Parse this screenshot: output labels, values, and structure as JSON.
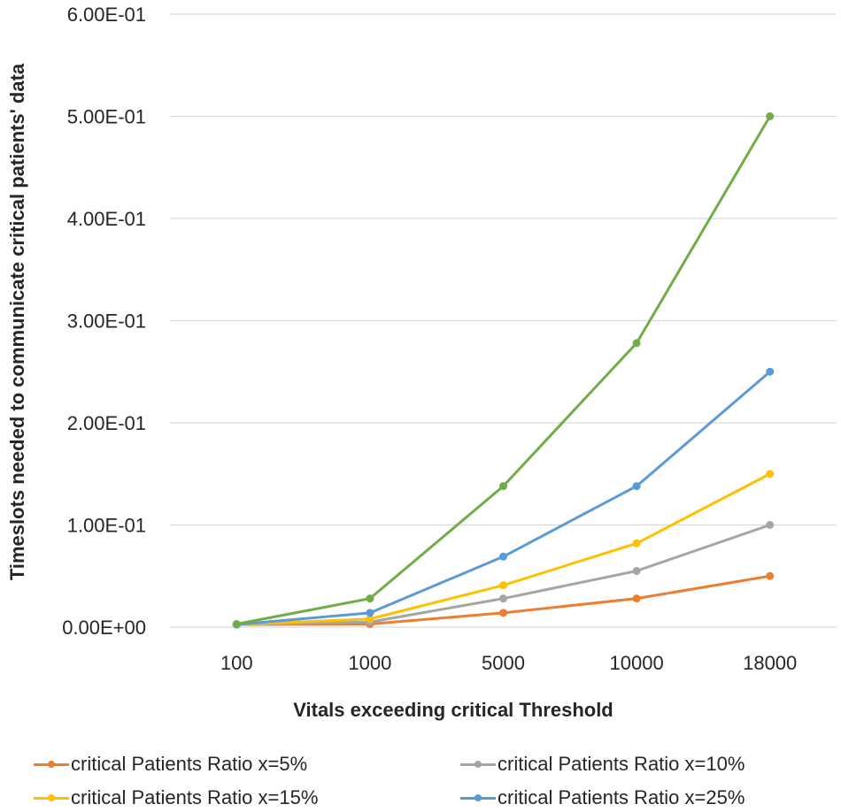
{
  "chart_data": {
    "type": "line",
    "title": "",
    "xlabel": "Vitals exceeding critical Threshold",
    "ylabel": "Timeslots needed to communicate critical patients' data",
    "categories": [
      "100",
      "1000",
      "5000",
      "10000",
      "18000"
    ],
    "ylim": [
      0,
      0.6
    ],
    "y_ticks": [
      "0.00E+00",
      "1.00E-01",
      "2.00E-01",
      "3.00E-01",
      "4.00E-01",
      "5.00E-01",
      "6.00E-01"
    ],
    "grid": true,
    "legend_position": "bottom",
    "series": [
      {
        "name": "critical Patients Ratio x=5%",
        "color": "#ED7D31",
        "values": [
          0.0025,
          0.003,
          0.014,
          0.028,
          0.05
        ]
      },
      {
        "name": "critical Patients Ratio x=10%",
        "color": "#A5A5A5",
        "values": [
          0.0025,
          0.005,
          0.028,
          0.055,
          0.1
        ]
      },
      {
        "name": "critical Patients Ratio x=15%",
        "color": "#FFC000",
        "values": [
          0.0025,
          0.008,
          0.041,
          0.082,
          0.15
        ]
      },
      {
        "name": "critical Patients Ratio x=25%",
        "color": "#5B9BD5",
        "values": [
          0.0025,
          0.014,
          0.069,
          0.138,
          0.25
        ]
      },
      {
        "name": "",
        "color": "#70AD47",
        "values": [
          0.003,
          0.028,
          0.138,
          0.278,
          0.5
        ]
      }
    ]
  }
}
